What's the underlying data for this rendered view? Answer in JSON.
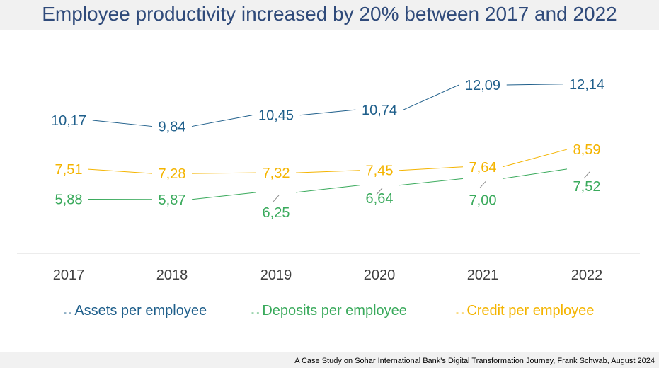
{
  "title": "Employee productivity increased by 20% between 2017 and 2022",
  "footer": "A Case Study on Sohar International Bank's Digital Transformation Journey, Frank Schwab, August 2024",
  "chart_data": {
    "type": "line",
    "title": "Employee productivity increased by 20% between 2017 and 2022",
    "xlabel": "",
    "ylabel": "",
    "categories": [
      "2017",
      "2018",
      "2019",
      "2020",
      "2021",
      "2022"
    ],
    "ylim": [
      0,
      14
    ],
    "grid": false,
    "legend_position": "bottom",
    "series": [
      {
        "name": "Assets per employee",
        "color": "#1f5f8b",
        "values": [
          10.17,
          9.84,
          10.45,
          10.74,
          12.09,
          12.14
        ],
        "labels": [
          "10,17",
          "9,84",
          "10,45",
          "10,74",
          "12,09",
          "12,14"
        ]
      },
      {
        "name": "Deposits per employee",
        "color": "#3aaa5c",
        "values": [
          5.88,
          5.87,
          6.25,
          6.64,
          7.0,
          7.52
        ],
        "labels": [
          "5,88",
          "5,87",
          "6,25",
          "6,64",
          "7,00",
          "7,52"
        ]
      },
      {
        "name": "Credit per employee",
        "color": "#f4b400",
        "values": [
          7.51,
          7.28,
          7.32,
          7.45,
          7.64,
          8.59
        ],
        "labels": [
          "7,51",
          "7,28",
          "7,32",
          "7,45",
          "7,64",
          "8,59"
        ]
      }
    ]
  }
}
